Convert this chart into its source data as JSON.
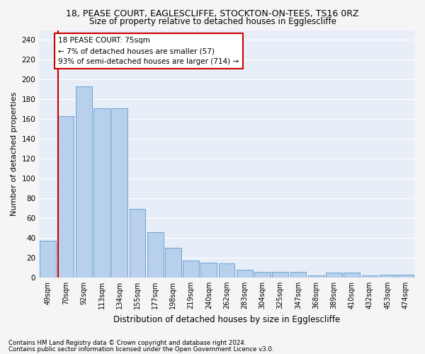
{
  "title1": "18, PEASE COURT, EAGLESCLIFFE, STOCKTON-ON-TEES, TS16 0RZ",
  "title2": "Size of property relative to detached houses in Egglescliffe",
  "xlabel": "Distribution of detached houses by size in Egglescliffe",
  "ylabel": "Number of detached properties",
  "categories": [
    "49sqm",
    "70sqm",
    "92sqm",
    "113sqm",
    "134sqm",
    "155sqm",
    "177sqm",
    "198sqm",
    "219sqm",
    "240sqm",
    "262sqm",
    "283sqm",
    "304sqm",
    "325sqm",
    "347sqm",
    "368sqm",
    "389sqm",
    "410sqm",
    "432sqm",
    "453sqm",
    "474sqm"
  ],
  "values": [
    37,
    163,
    193,
    171,
    171,
    69,
    46,
    30,
    17,
    15,
    14,
    8,
    6,
    6,
    6,
    2,
    5,
    5,
    2,
    3,
    3
  ],
  "bar_color": "#b8d0eb",
  "bar_edge_color": "#6aa3d5",
  "marker_bar_index": 1,
  "annotation_text": "18 PEASE COURT: 75sqm\n← 7% of detached houses are smaller (57)\n93% of semi-detached houses are larger (714) →",
  "annotation_box_color": "#ffffff",
  "annotation_box_edge": "#cc0000",
  "marker_line_color": "#cc0000",
  "footer1": "Contains HM Land Registry data © Crown copyright and database right 2024.",
  "footer2": "Contains public sector information licensed under the Open Government Licence v3.0.",
  "ylim": [
    0,
    250
  ],
  "yticks": [
    0,
    20,
    40,
    60,
    80,
    100,
    120,
    140,
    160,
    180,
    200,
    220,
    240
  ],
  "bg_color": "#e8eef8",
  "grid_color": "#ffffff",
  "fig_bg_color": "#f5f5f5"
}
